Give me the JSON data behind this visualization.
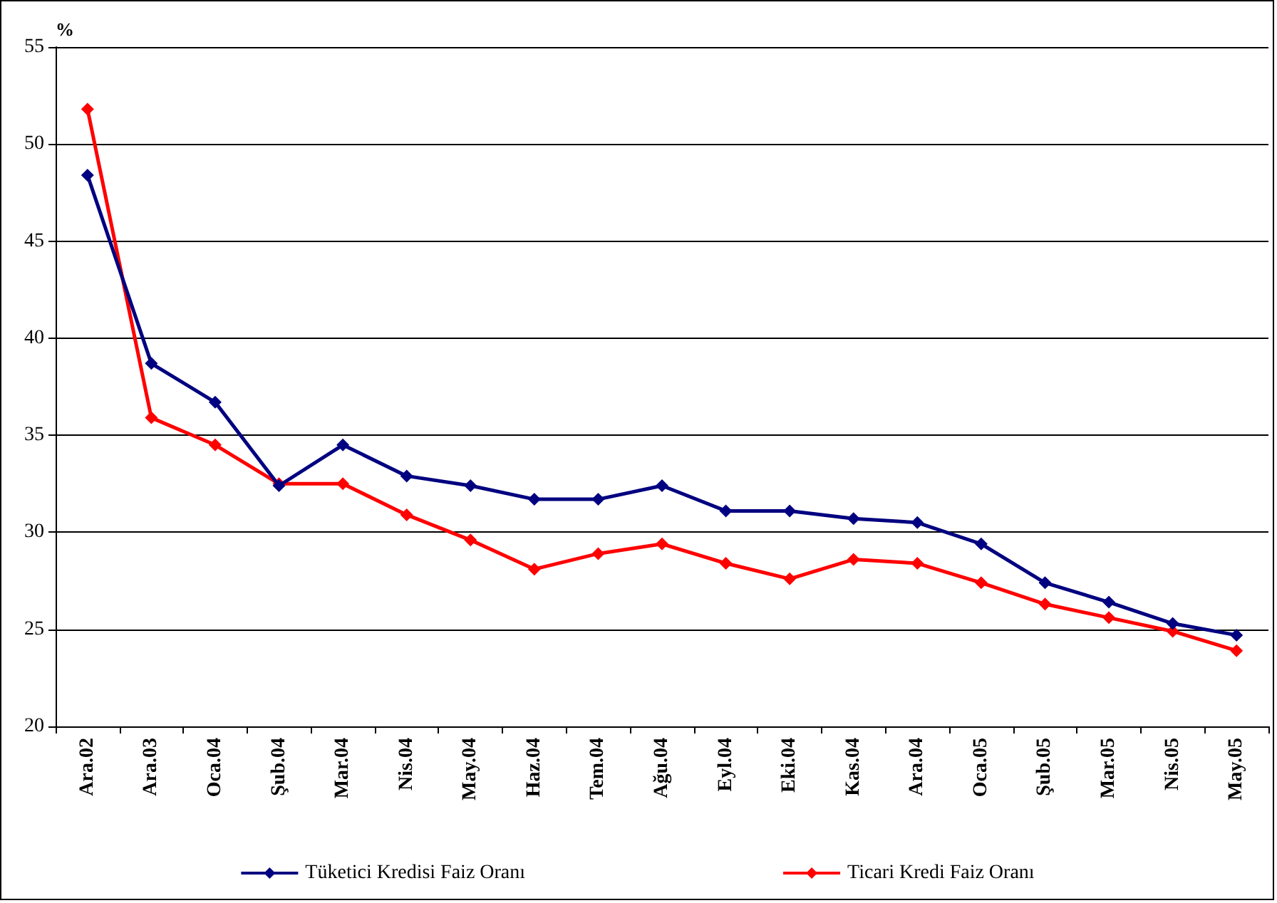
{
  "chart_data": {
    "type": "line",
    "ylabel": "%",
    "categories": [
      "Ara.02",
      "Ara.03",
      "Oca.04",
      "Şub.04",
      "Mar.04",
      "Nis.04",
      "May.04",
      "Haz.04",
      "Tem.04",
      "Ağu.04",
      "Eyl.04",
      "Eki.04",
      "Kas.04",
      "Ara.04",
      "Oca.05",
      "Şub.05",
      "Mar.05",
      "Nis.05",
      "May.05"
    ],
    "series": [
      {
        "name": "Tüketici Kredisi Faiz Oranı",
        "color": "#000080",
        "values": [
          48.4,
          38.7,
          36.7,
          32.4,
          34.5,
          32.9,
          32.4,
          31.7,
          31.7,
          32.4,
          31.1,
          31.1,
          30.7,
          30.5,
          29.4,
          27.4,
          26.4,
          25.3,
          24.7
        ]
      },
      {
        "name": "Ticari Kredi Faiz Oranı",
        "color": "#ff0000",
        "values": [
          51.8,
          35.9,
          34.5,
          32.5,
          32.5,
          30.9,
          29.6,
          28.1,
          28.9,
          29.4,
          28.4,
          27.6,
          28.6,
          28.4,
          27.4,
          26.3,
          25.6,
          24.9,
          23.9
        ]
      }
    ],
    "ylim": [
      20,
      55
    ],
    "yticks": [
      20,
      25,
      30,
      35,
      40,
      45,
      50,
      55
    ],
    "grid": "y",
    "legend": "bottom",
    "marker": "diamond",
    "line_style": "solid"
  }
}
